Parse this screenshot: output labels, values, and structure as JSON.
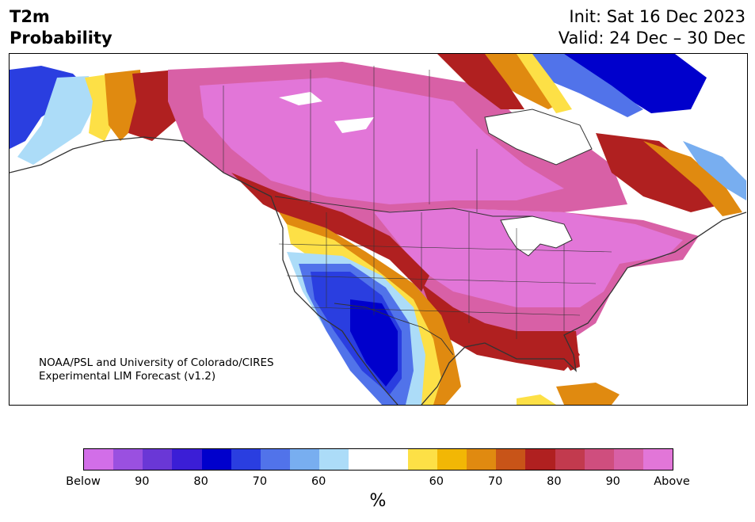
{
  "title": {
    "line1": "T2m",
    "line2": "Probability",
    "init": "Init: Sat 16 Dec 2023",
    "valid": "Valid: 24 Dec – 30 Dec"
  },
  "credit": {
    "line1": "NOAA/PSL and University of Colorado/CIRES",
    "line2": "Experimental LIM Forecast (v1.2)"
  },
  "colorbar": {
    "colors": [
      "#d26ee8",
      "#9a50e0",
      "#6a37d6",
      "#3b1ed6",
      "#0000cc",
      "#2a3ee0",
      "#5173ea",
      "#78aef0",
      "#acdcf8",
      "#ffffff",
      "#ffffff",
      "#fde046",
      "#f2b705",
      "#e08a10",
      "#c85418",
      "#b02020",
      "#c23a4e",
      "#cf4e7e",
      "#d860a6",
      "#e276d8"
    ],
    "ticks": [
      "Below",
      "90",
      "80",
      "70",
      "60",
      "60",
      "70",
      "80",
      "90",
      "Above"
    ],
    "unit": "%"
  },
  "colors": {
    "above_strong": "#e276d8",
    "above_90": "#d860a6",
    "above_80": "#b02020",
    "above_70": "#e08a10",
    "above_60": "#fde046",
    "below_60": "#acdcf8",
    "below_70": "#78aef0",
    "below_80": "#2a3ee0",
    "below_90": "#0000cc",
    "land_boundary": "#333333"
  }
}
